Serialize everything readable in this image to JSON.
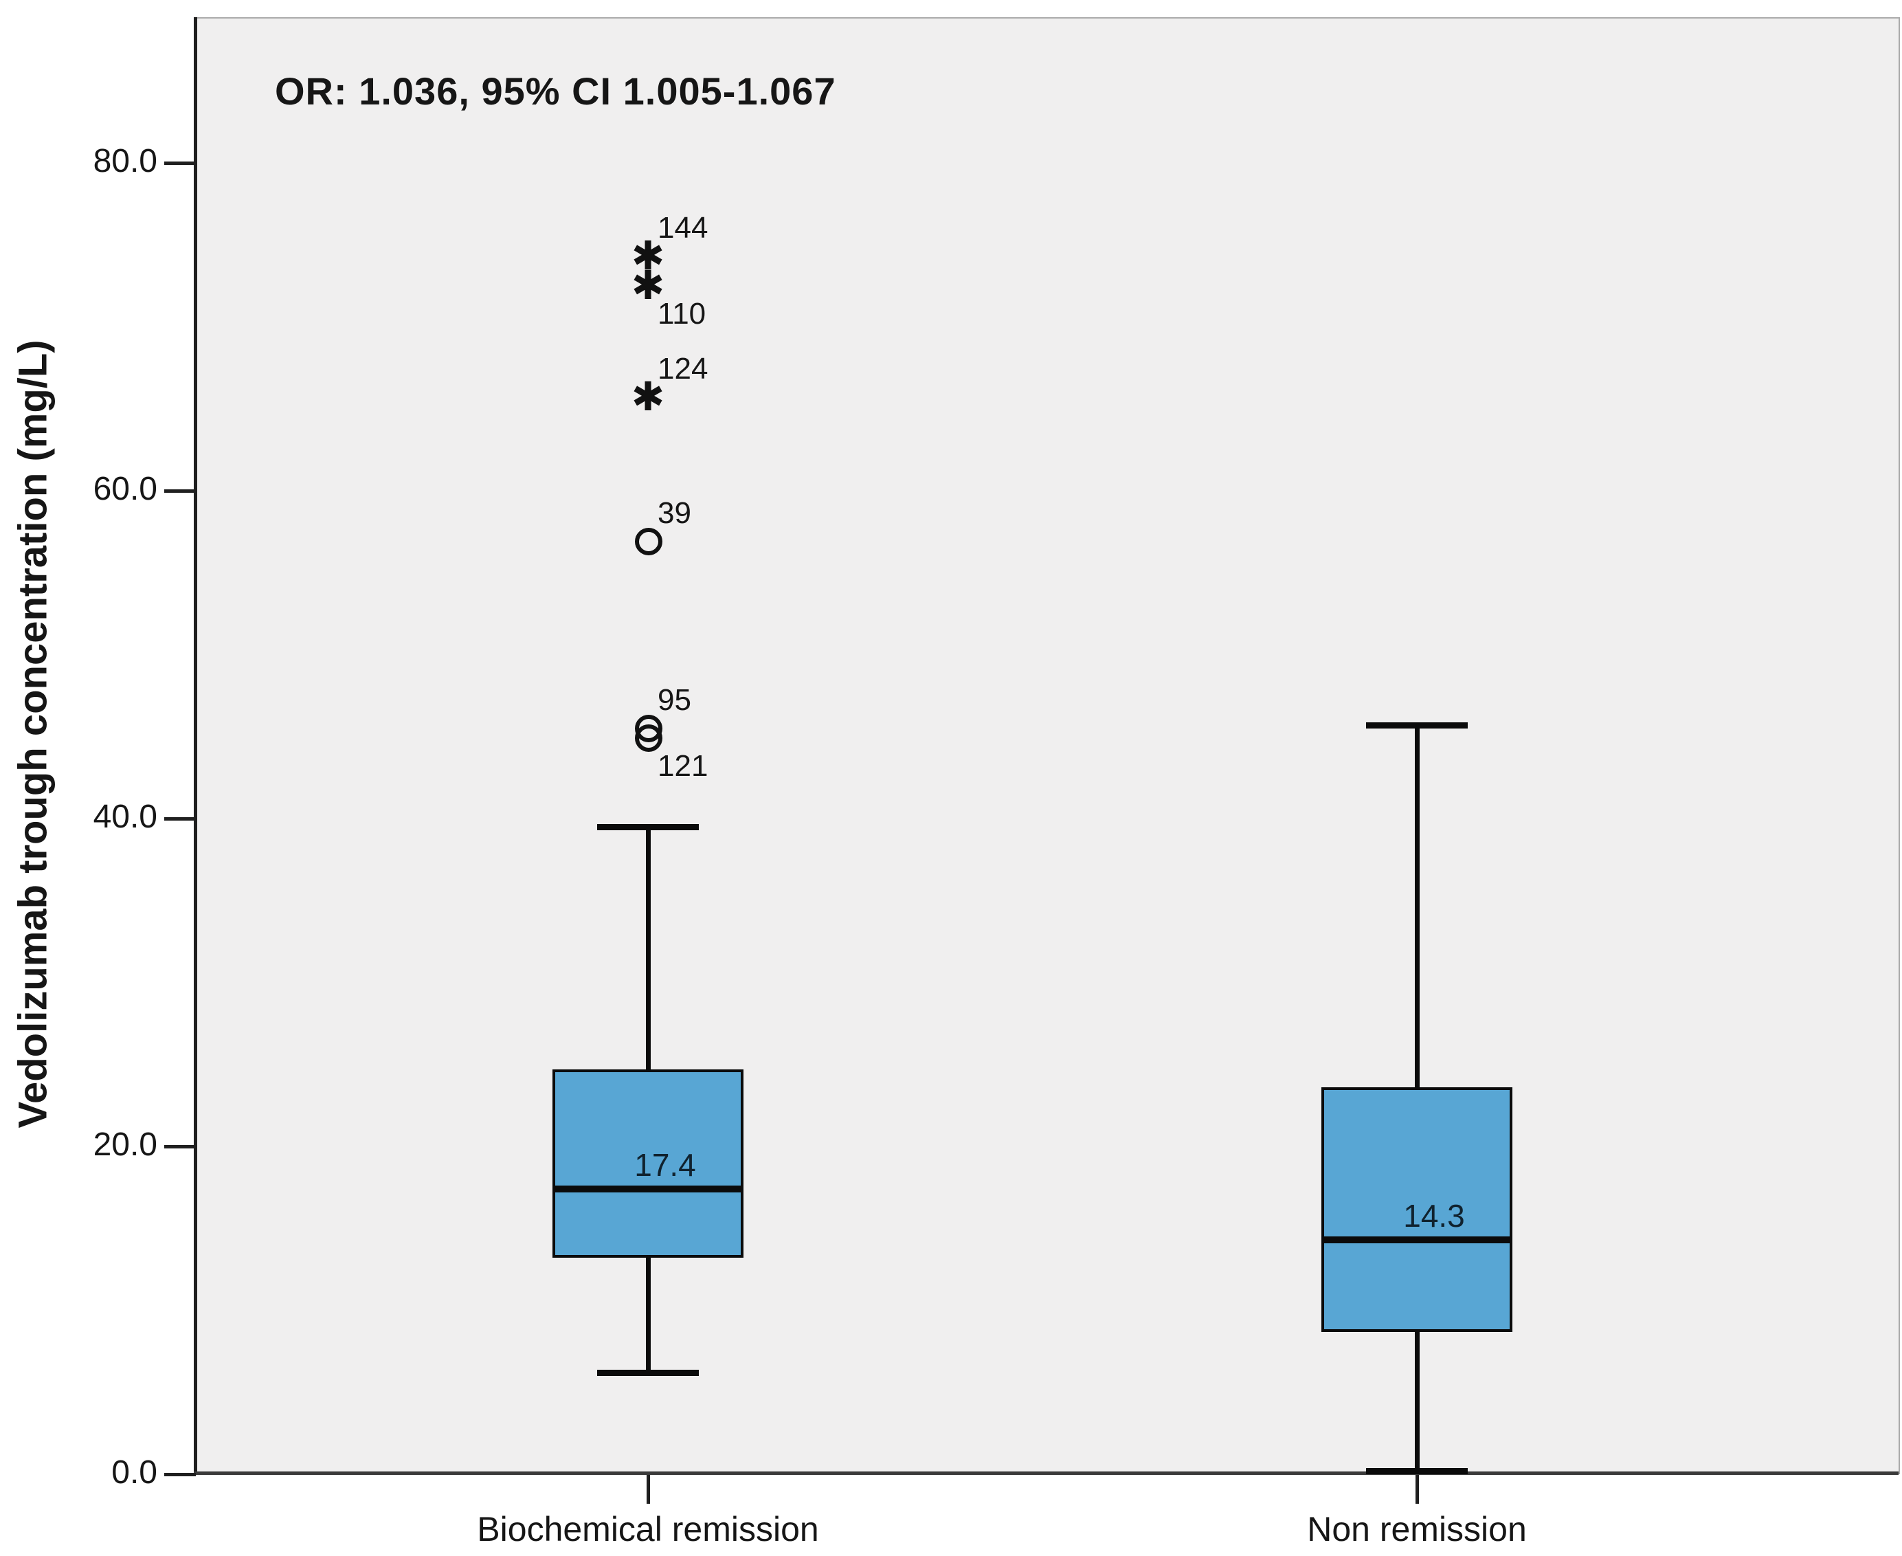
{
  "figure": {
    "annotation": "OR: 1.036, 95% CI 1.005-1.067",
    "colors": {
      "box_fill": "#58a6d4",
      "box_border": "#0b0b0b",
      "plot_background": "#f0efef",
      "axis_line": "#1f1f1f",
      "text": "#161616"
    }
  },
  "chart_data": {
    "type": "boxplot",
    "title": "OR: 1.036, 95% CI 1.005-1.067",
    "xlabel": "",
    "ylabel": "Vedolizumab trough concentration (mg/L)",
    "ylim": [
      0,
      88
    ],
    "grid": false,
    "yticks": [
      {
        "value": 80,
        "label": "80.0"
      },
      {
        "value": 60,
        "label": "60.0"
      },
      {
        "value": 40,
        "label": "40.0"
      },
      {
        "value": 20,
        "label": "20.0"
      },
      {
        "value": 0,
        "label": "0.0"
      }
    ],
    "groups": [
      {
        "category": "Biochemical remission",
        "median": 17.4,
        "median_label": "17.4",
        "q1": 13.2,
        "q3": 24.7,
        "whisker_low": 6.2,
        "whisker_high": 39.5,
        "outliers": [
          {
            "value": 74.3,
            "label": "144",
            "glyph": "star",
            "label_pos": "above"
          },
          {
            "value": 72.5,
            "label": "110",
            "glyph": "star",
            "label_pos": "below"
          },
          {
            "value": 65.7,
            "label": "124",
            "glyph": "star",
            "label_pos": "above"
          },
          {
            "value": 56.9,
            "label": "39",
            "glyph": "circle",
            "label_pos": "above"
          },
          {
            "value": 45.5,
            "label": "95",
            "glyph": "circle",
            "label_pos": "above"
          },
          {
            "value": 44.9,
            "label": "121",
            "glyph": "circle",
            "label_pos": "below"
          }
        ]
      },
      {
        "category": "Non remission",
        "median": 14.3,
        "median_label": "14.3",
        "q1": 8.7,
        "q3": 23.6,
        "whisker_low": 0.2,
        "whisker_high": 45.7,
        "outliers": []
      }
    ]
  }
}
